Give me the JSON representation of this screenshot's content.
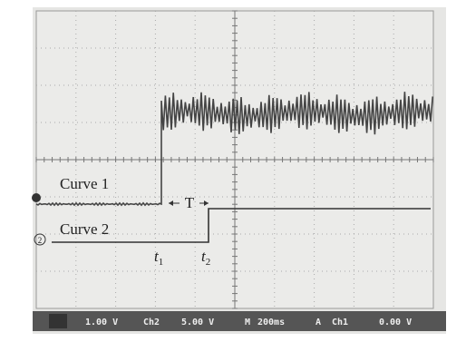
{
  "screen": {
    "curve1_label": "Curve 1",
    "curve2_label": "Curve 2",
    "interval_label": "T",
    "t1": {
      "main": "t",
      "sub": "1"
    },
    "t2": {
      "main": "t",
      "sub": "2"
    },
    "channel2_marker": "2",
    "status_bar": [
      "1.00 V",
      "Ch2",
      "5.00 V",
      "200ms",
      "Ch1",
      "0.00 V"
    ],
    "status_icons": [
      "M",
      "A"
    ]
  }
}
